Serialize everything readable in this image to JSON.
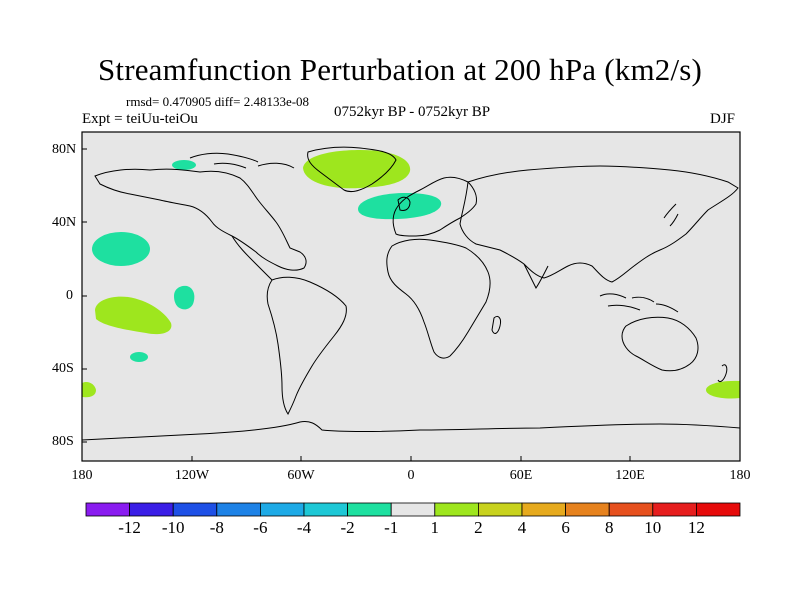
{
  "title": "Streamfunction Perturbation at 200 hPa (km2/s)",
  "stats": "rmsd= 0.470905 diff= 2.48133e-08",
  "experiment": "Expt = teiUu-teiOu",
  "period": "0752kyr BP - 0752kyr BP",
  "season": "DJF",
  "lat_ticks": [
    "80N",
    "40N",
    "0",
    "40S",
    "80S"
  ],
  "lon_ticks": [
    "180",
    "120W",
    "60W",
    "0",
    "60E",
    "120E",
    "180"
  ],
  "colorbar": {
    "labels": [
      "-12",
      "-10",
      "-8",
      "-6",
      "-4",
      "-2",
      "-1",
      "1",
      "2",
      "4",
      "6",
      "8",
      "10",
      "12"
    ],
    "colors": [
      "#8a1cf0",
      "#3a1ee6",
      "#1e50e6",
      "#1e82e6",
      "#1eaae6",
      "#1ec8d6",
      "#1ee0a0",
      "#e6e6e6",
      "#9ee61e",
      "#c8d21e",
      "#e6aa1e",
      "#e6821e",
      "#e6501e",
      "#e61e1e",
      "#e60a0a"
    ]
  },
  "anomalies": [
    {
      "name": "north-pacific-negative",
      "lon": -159,
      "lat": 25,
      "category": "-1"
    },
    {
      "name": "tropical-pacific-positive",
      "lon": -160,
      "lat": -10,
      "category": "1"
    },
    {
      "name": "east-pacific-negative",
      "lon": -117,
      "lat": -1,
      "category": "-1"
    },
    {
      "name": "south-pacific-negative",
      "lon": -163,
      "lat": -30,
      "category": "-1"
    },
    {
      "name": "arctic-canada-negative",
      "lon": -125,
      "lat": 71,
      "category": "-1"
    },
    {
      "name": "greenland-positive",
      "lon": -30,
      "lat": 70,
      "category": "1"
    },
    {
      "name": "north-atlantic-negative",
      "lon": -13,
      "lat": 50,
      "category": "-1"
    },
    {
      "name": "south-atlantic-dateline-positive-west",
      "lon": -179,
      "lat": -52,
      "category": "1"
    },
    {
      "name": "southwest-pacific-positive-east",
      "lon": 171,
      "lat": -52,
      "category": "1"
    }
  ]
}
